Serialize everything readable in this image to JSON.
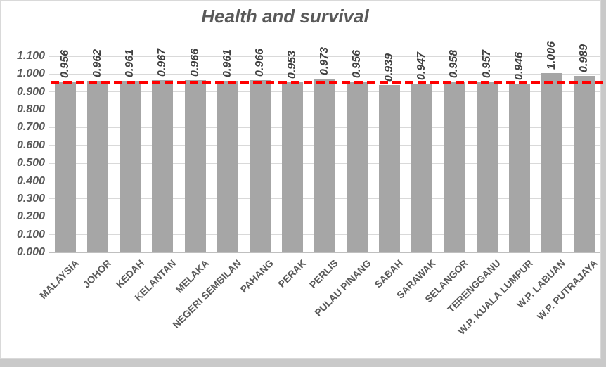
{
  "chart_data": {
    "type": "bar",
    "title": "Health and survival",
    "categories": [
      "MALAYSIA",
      "JOHOR",
      "KEDAH",
      "KELANTAN",
      "MELAKA",
      "NEGERI SEMBILAN",
      "PAHANG",
      "PERAK",
      "PERLIS",
      "PULAU PINANG",
      "SABAH",
      "SARAWAK",
      "SELANGOR",
      "TERENGGANU",
      "W.P. KUALA LUMPUR",
      "W.P. LABUAN",
      "W.P. PUTRAJAYA"
    ],
    "values": [
      0.956,
      0.962,
      0.961,
      0.967,
      0.966,
      0.961,
      0.966,
      0.953,
      0.973,
      0.956,
      0.939,
      0.947,
      0.958,
      0.957,
      0.946,
      1.006,
      0.989
    ],
    "value_labels": [
      "0.956",
      "0.962",
      "0.961",
      "0.967",
      "0.966",
      "0.961",
      "0.966",
      "0.953",
      "0.973",
      "0.956",
      "0.939",
      "0.947",
      "0.958",
      "0.957",
      "0.946",
      "1.006",
      "0.989"
    ],
    "xlabel": "",
    "ylabel": "",
    "ylim": [
      0,
      1.1
    ],
    "y_ticks": [
      "0.000",
      "0.100",
      "0.200",
      "0.300",
      "0.400",
      "0.500",
      "0.600",
      "0.700",
      "0.800",
      "0.900",
      "1.000",
      "1.100"
    ],
    "grid": true,
    "legend": "none",
    "reference_line": {
      "value": 0.956,
      "style": "dashed",
      "color": "#FF0000"
    },
    "colors": {
      "bar": "#A6A6A6",
      "gridline": "#D9D9D9",
      "axis_line": "#BFBFBF",
      "axis_text": "#595959",
      "data_label_text": "#404040",
      "background": "#FFFFFF",
      "canvas_behind_chart": "#C9C9C9"
    }
  }
}
